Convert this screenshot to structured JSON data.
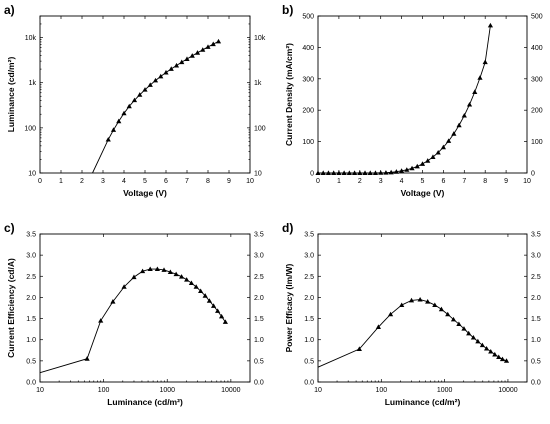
{
  "chart_data": [
    {
      "id": "a",
      "panel_label": "a)",
      "type": "line",
      "xlabel": "Voltage (V)",
      "ylabel": "Luminance (cd/m²)",
      "x_scale": "linear",
      "y_scale": "log",
      "xlim": [
        0,
        10
      ],
      "ylim": [
        10,
        30000
      ],
      "x_ticks": [
        0,
        1,
        2,
        3,
        4,
        5,
        6,
        7,
        8,
        9,
        10
      ],
      "x_tick_labels": [
        "0",
        "1",
        "2",
        "3",
        "4",
        "5",
        "6",
        "7",
        "8",
        "9",
        "10"
      ],
      "y_ticks": [
        10,
        100,
        1000,
        10000
      ],
      "y_tick_labels": [
        "10",
        "100",
        "1k",
        "10k"
      ],
      "right_axis_labels": true,
      "series": [
        {
          "marker": "triangle",
          "line_start": [
            2.5,
            10
          ],
          "x": [
            3.25,
            3.5,
            3.75,
            4.0,
            4.25,
            4.5,
            4.75,
            5.0,
            5.25,
            5.5,
            5.75,
            6.0,
            6.25,
            6.5,
            6.75,
            7.0,
            7.25,
            7.5,
            7.75,
            8.0,
            8.25,
            8.5
          ],
          "y": [
            55,
            90,
            140,
            210,
            300,
            410,
            540,
            700,
            890,
            1120,
            1380,
            1680,
            2020,
            2400,
            2850,
            3350,
            3950,
            4600,
            5350,
            6200,
            7150,
            8200
          ]
        }
      ]
    },
    {
      "id": "b",
      "panel_label": "b)",
      "type": "line",
      "xlabel": "Voltage (V)",
      "ylabel": "Current Density (mA/cm²)",
      "x_scale": "linear",
      "y_scale": "linear",
      "xlim": [
        0,
        10
      ],
      "ylim": [
        0,
        500
      ],
      "x_ticks": [
        0,
        1,
        2,
        3,
        4,
        5,
        6,
        7,
        8,
        9,
        10
      ],
      "x_tick_labels": [
        "0",
        "1",
        "2",
        "3",
        "4",
        "5",
        "6",
        "7",
        "8",
        "9",
        "10"
      ],
      "y_ticks": [
        0,
        100,
        200,
        300,
        400,
        500
      ],
      "y_tick_labels": [
        "0",
        "100",
        "200",
        "300",
        "400",
        "500"
      ],
      "right_axis_labels": true,
      "series": [
        {
          "marker": "triangle",
          "x": [
            0,
            0.25,
            0.5,
            0.75,
            1.0,
            1.25,
            1.5,
            1.75,
            2.0,
            2.25,
            2.5,
            2.75,
            3.0,
            3.25,
            3.5,
            3.75,
            4.0,
            4.25,
            4.5,
            4.75,
            5.0,
            5.25,
            5.5,
            5.75,
            6.0,
            6.25,
            6.5,
            6.75,
            7.0,
            7.25,
            7.5,
            7.75,
            8.0,
            8.25
          ],
          "y": [
            0,
            0,
            0,
            0,
            0,
            0,
            0,
            0,
            0,
            0,
            0,
            0,
            0.5,
            1,
            2,
            4,
            7,
            10,
            15,
            21,
            29,
            39,
            51,
            65,
            82,
            102,
            125,
            152,
            183,
            218,
            258,
            303,
            353,
            470
          ]
        }
      ]
    },
    {
      "id": "c",
      "panel_label": "c)",
      "type": "line",
      "xlabel": "Luminance (cd/m²)",
      "ylabel": "Current Efficiency (cd/A)",
      "x_scale": "log",
      "y_scale": "linear",
      "xlim": [
        10,
        20000
      ],
      "ylim": [
        0,
        3.5
      ],
      "x_ticks": [
        10,
        100,
        1000,
        10000
      ],
      "x_tick_labels": [
        "10",
        "100",
        "1000",
        "10000"
      ],
      "y_ticks": [
        0,
        0.5,
        1.0,
        1.5,
        2.0,
        2.5,
        3.0,
        3.5
      ],
      "y_tick_labels": [
        "0.0",
        "0.5",
        "1.0",
        "1.5",
        "2.0",
        "2.5",
        "3.0",
        "3.5"
      ],
      "right_axis_labels": true,
      "series": [
        {
          "marker": "triangle",
          "line_start": [
            10,
            0.22
          ],
          "x": [
            55,
            90,
            140,
            210,
            300,
            410,
            540,
            700,
            890,
            1120,
            1380,
            1680,
            2020,
            2400,
            2850,
            3350,
            3950,
            4600,
            5350,
            6200,
            7150,
            8200
          ],
          "y": [
            0.55,
            1.45,
            1.9,
            2.25,
            2.48,
            2.62,
            2.67,
            2.67,
            2.65,
            2.6,
            2.55,
            2.49,
            2.42,
            2.34,
            2.25,
            2.15,
            2.04,
            1.92,
            1.8,
            1.68,
            1.55,
            1.42
          ]
        }
      ]
    },
    {
      "id": "d",
      "panel_label": "d)",
      "type": "line",
      "xlabel": "Luminance (cd/m²)",
      "ylabel": "Power Efficacy (lm/W)",
      "x_scale": "log",
      "y_scale": "linear",
      "xlim": [
        10,
        20000
      ],
      "ylim": [
        0,
        3.5
      ],
      "x_ticks": [
        10,
        100,
        1000,
        10000
      ],
      "x_tick_labels": [
        "10",
        "100",
        "1000",
        "10000"
      ],
      "y_ticks": [
        0,
        0.5,
        1.0,
        1.5,
        2.0,
        2.5,
        3.0,
        3.5
      ],
      "y_tick_labels": [
        "0.0",
        "0.5",
        "1.0",
        "1.5",
        "2.0",
        "2.5",
        "3.0",
        "3.5"
      ],
      "right_axis_labels": true,
      "series": [
        {
          "marker": "triangle",
          "line_start": [
            10,
            0.35
          ],
          "x": [
            45,
            90,
            140,
            210,
            300,
            410,
            540,
            700,
            890,
            1120,
            1380,
            1680,
            2020,
            2400,
            2850,
            3350,
            3950,
            4600,
            5350,
            6200,
            7150,
            8200,
            9500
          ],
          "y": [
            0.78,
            1.3,
            1.6,
            1.82,
            1.93,
            1.95,
            1.9,
            1.82,
            1.72,
            1.6,
            1.48,
            1.37,
            1.26,
            1.15,
            1.05,
            0.96,
            0.87,
            0.79,
            0.72,
            0.65,
            0.59,
            0.54,
            0.5
          ]
        }
      ]
    }
  ]
}
